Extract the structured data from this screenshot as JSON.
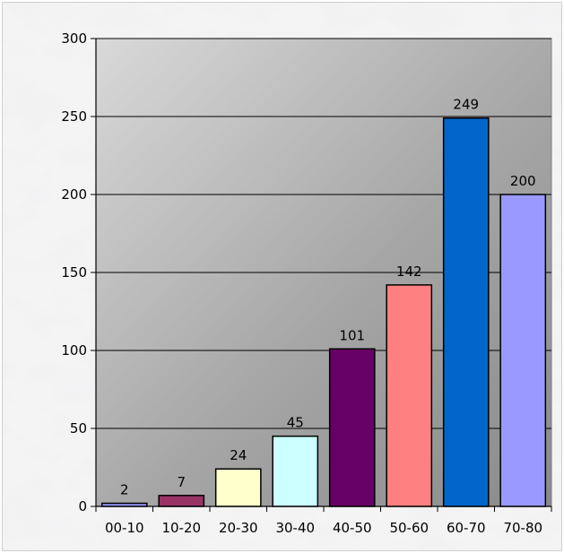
{
  "chart_data": {
    "type": "bar",
    "categories": [
      "00-10",
      "10-20",
      "20-30",
      "30-40",
      "40-50",
      "50-60",
      "60-70",
      "70-80"
    ],
    "values": [
      2,
      7,
      24,
      45,
      101,
      142,
      249,
      200
    ],
    "data_labels": [
      "2",
      "7",
      "24",
      "45",
      "101",
      "142",
      "249",
      "200"
    ],
    "bar_colors": [
      "#9999ff",
      "#993366",
      "#ffffcc",
      "#ccffff",
      "#660066",
      "#ff8080",
      "#0066cc",
      "#9999ff"
    ],
    "title": "",
    "xlabel": "",
    "ylabel": "",
    "ylim": [
      0,
      300
    ],
    "yticks": [
      0,
      50,
      100,
      150,
      200,
      250,
      300
    ],
    "ytick_labels": [
      "0",
      "50",
      "100",
      "150",
      "200",
      "250",
      "300"
    ],
    "grid": true,
    "legend": "none",
    "background": "marble texture",
    "plot_area": "gray gradient"
  }
}
